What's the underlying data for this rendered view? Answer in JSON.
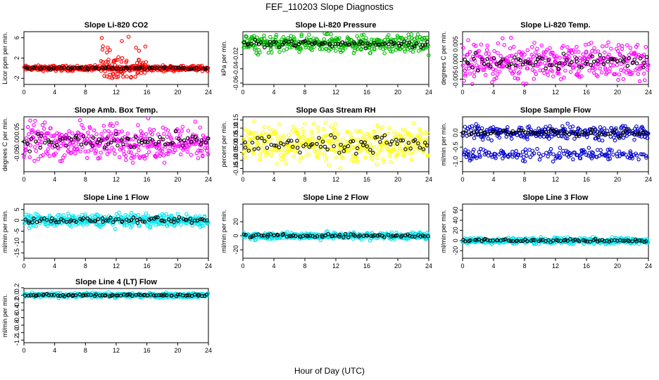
{
  "title": "FEF_110203  Slope Diagnostics",
  "xlabel": "Hour of Day (UTC)",
  "chart_data": [
    {
      "type": "scatter",
      "title": "Slope Li-820 CO2",
      "ylabel": "Licor ppm per min.",
      "xlim": [
        0,
        24
      ],
      "xticks": [
        0,
        4,
        8,
        12,
        16,
        20,
        24
      ],
      "ylim": [
        -3.2,
        7.2
      ],
      "yticks": [
        -2,
        2,
        6
      ],
      "ytick_labels": [
        "-2",
        "2",
        "6"
      ],
      "spread": 0.25,
      "spread_outer": 1.0,
      "outer_range": [
        10,
        16
      ],
      "outer_count": 70,
      "outer_extent": [
        -2.2,
        6.5
      ],
      "series": [
        {
          "color": "#ff0000",
          "count": 380
        },
        {
          "color": "#000000",
          "count": 75
        }
      ]
    },
    {
      "type": "scatter",
      "title": "Slope Li-820 Pressure",
      "ylabel": "kPa per min.",
      "xlim": [
        0,
        24
      ],
      "xticks": [
        0,
        4,
        8,
        12,
        16,
        20,
        24
      ],
      "ylim": [
        -0.062,
        0.012
      ],
      "yticks": [
        -0.06,
        -0.04,
        -0.02
      ],
      "ytick_labels": [
        "-0.06",
        "-0.04",
        "-0.02"
      ],
      "center": -0.005,
      "spread": 0.006,
      "series": [
        {
          "color": "#00bb00",
          "count": 380
        },
        {
          "color": "#000000",
          "count": 75
        }
      ]
    },
    {
      "type": "scatter",
      "title": "Slope Li-820 Temp.",
      "ylabel": "degrees C per min.",
      "xlim": [
        0,
        24
      ],
      "xticks": [
        0,
        4,
        8,
        12,
        16,
        20,
        24
      ],
      "ylim": [
        -0.0065,
        0.0085
      ],
      "yticks": [
        -0.005,
        0.0,
        0.005
      ],
      "ytick_labels": [
        "-0.005",
        "0.000",
        "0.005"
      ],
      "spread": 0.0025,
      "series": [
        {
          "color": "#ff00ff",
          "count": 380
        },
        {
          "color": "#000000",
          "count": 75
        }
      ]
    },
    {
      "type": "scatter",
      "title": "Slope Amb. Box Temp.",
      "ylabel": "degrees C per min.",
      "xlim": [
        0,
        24
      ],
      "xticks": [
        0,
        4,
        8,
        12,
        16,
        20,
        24
      ],
      "ylim": [
        -0.12,
        0.1
      ],
      "yticks": [
        -0.05,
        0.0,
        0.05
      ],
      "ytick_labels": [
        "-0.05",
        "0.00",
        "0.05"
      ],
      "spread": 0.035,
      "series": [
        {
          "color": "#ff00ff",
          "count": 380
        },
        {
          "color": "#000000",
          "count": 75
        }
      ]
    },
    {
      "type": "scatter",
      "title": "Slope Gas Stream RH",
      "ylabel": "percent per min.",
      "xlim": [
        0,
        24
      ],
      "xticks": [
        0,
        4,
        8,
        12,
        16,
        20,
        24
      ],
      "ylim": [
        -0.17,
        0.17
      ],
      "yticks": [
        -0.15,
        -0.1,
        -0.05,
        0.0,
        0.05,
        0.1,
        0.15
      ],
      "ytick_labels": [
        "-0.15",
        "-0.10",
        "-0.05",
        "0.00",
        "0.05",
        "0.10",
        "0.15"
      ],
      "spread": 0.055,
      "series": [
        {
          "color": "#ffff00",
          "count": 380
        },
        {
          "color": "#000000",
          "count": 75
        }
      ]
    },
    {
      "type": "scatter",
      "title": "Slope Sample Flow",
      "ylabel": "ml/min per min.",
      "xlim": [
        0,
        24
      ],
      "xticks": [
        0,
        4,
        8,
        12,
        16,
        20,
        24
      ],
      "ylim": [
        -1.35,
        0.55
      ],
      "yticks": [
        -1.0,
        -0.5,
        0.0
      ],
      "ytick_labels": [
        "-1.0",
        "-0.5",
        "0.0"
      ],
      "spread": 0.12,
      "band": -0.75,
      "series": [
        {
          "color": "#0000cc",
          "count": 420
        },
        {
          "color": "#000000",
          "count": 75
        }
      ]
    },
    {
      "type": "scatter",
      "title": "Slope Line 1 Flow",
      "ylabel": "ml/min per min.",
      "xlim": [
        0,
        24
      ],
      "xticks": [
        0,
        4,
        8,
        12,
        16,
        20,
        24
      ],
      "ylim": [
        -17.5,
        7.5
      ],
      "yticks": [
        -15,
        -10,
        -5,
        0,
        5
      ],
      "ytick_labels": [
        "-15",
        "-10",
        "-5",
        "0",
        "5"
      ],
      "spread": 1.4,
      "series": [
        {
          "color": "#00e5ee",
          "count": 380
        },
        {
          "color": "#000000",
          "count": 75
        }
      ]
    },
    {
      "type": "scatter",
      "title": "Slope Line 2 Flow",
      "ylabel": "ml/min per min.",
      "xlim": [
        0,
        24
      ],
      "xticks": [
        0,
        4,
        8,
        12,
        16,
        20,
        24
      ],
      "ylim": [
        -32,
        45
      ],
      "yticks": [
        -20,
        0,
        20
      ],
      "ytick_labels": [
        "-20",
        "0",
        "20"
      ],
      "spread": 2.5,
      "series": [
        {
          "color": "#00e5ee",
          "count": 380
        },
        {
          "color": "#000000",
          "count": 75
        }
      ]
    },
    {
      "type": "scatter",
      "title": "Slope Line 3 Flow",
      "ylabel": "ml/min per min.",
      "xlim": [
        0,
        24
      ],
      "xticks": [
        0,
        4,
        8,
        12,
        16,
        20,
        24
      ],
      "ylim": [
        -35,
        72
      ],
      "yticks": [
        -20,
        0,
        20,
        40,
        60
      ],
      "ytick_labels": [
        "-20",
        "0",
        "20",
        "40",
        "60"
      ],
      "spread": 3.0,
      "series": [
        {
          "color": "#00e5ee",
          "count": 380
        },
        {
          "color": "#000000",
          "count": 75
        }
      ]
    },
    {
      "type": "scatter",
      "title": "Slope Line 4 (LT) Flow",
      "ylabel": "ml/min per min.",
      "xlim": [
        0,
        24
      ],
      "xticks": [
        0,
        4,
        8,
        12,
        16,
        20,
        24
      ],
      "ylim": [
        -1.27,
        0.18
      ],
      "yticks": [
        -1.2,
        -1.0,
        -0.8,
        -0.6,
        -0.4,
        -0.2,
        0.0,
        0.2
      ],
      "ytick_labels": [
        "-1.2",
        "-1.0",
        "-0.8",
        "-0.6",
        "-0.4",
        "-0.2",
        "0.0",
        "0.2"
      ],
      "spread": 0.03,
      "series": [
        {
          "color": "#00e5ee",
          "count": 380
        },
        {
          "color": "#000000",
          "count": 75
        }
      ]
    }
  ]
}
